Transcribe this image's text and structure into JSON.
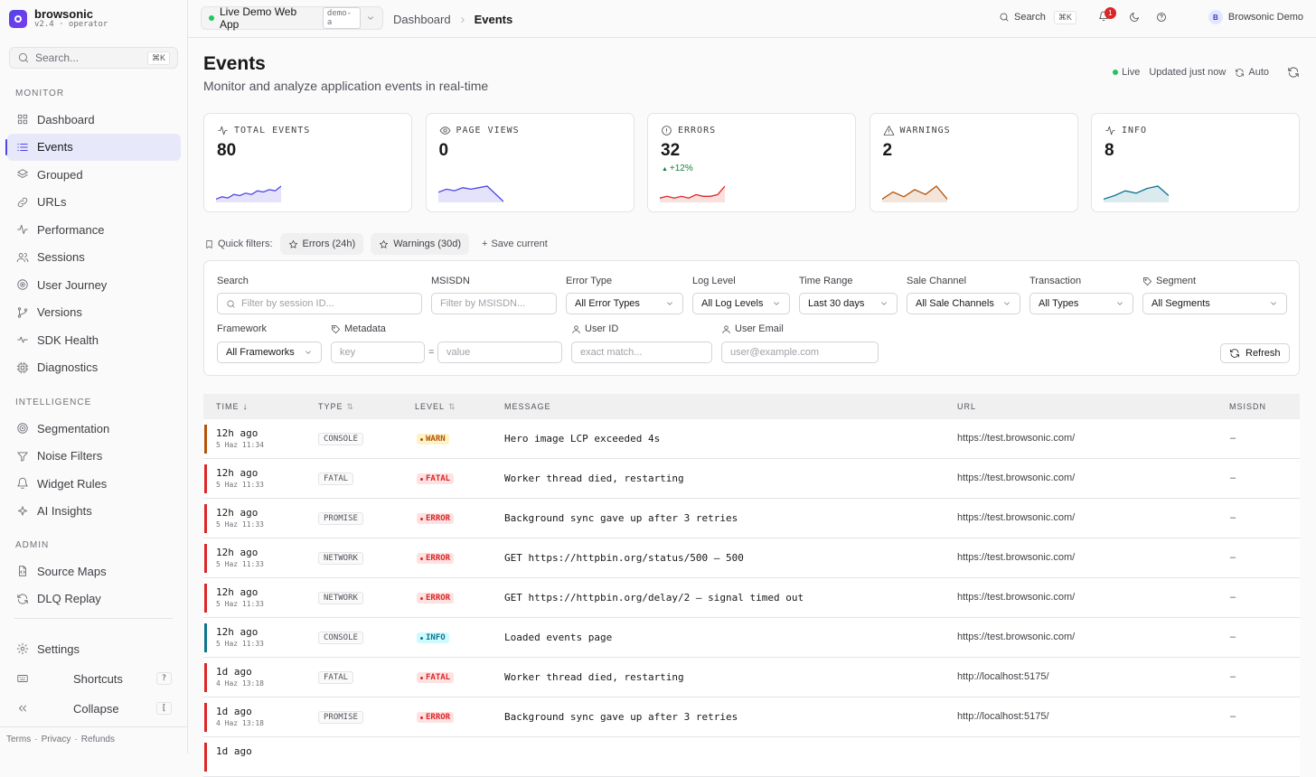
{
  "brand": {
    "name": "browsonic",
    "version": "v2.4 · operator"
  },
  "sidebar": {
    "search_placeholder": "Search...",
    "search_kbd": "⌘K",
    "sections": {
      "monitor": "MONITOR",
      "intelligence": "INTELLIGENCE",
      "admin": "ADMIN"
    },
    "monitor": [
      {
        "label": "Dashboard",
        "icon": "grid-icon"
      },
      {
        "label": "Events",
        "icon": "list-icon",
        "active": true
      },
      {
        "label": "Grouped",
        "icon": "layers-icon"
      },
      {
        "label": "URLs",
        "icon": "link-icon"
      },
      {
        "label": "Performance",
        "icon": "activity-icon"
      },
      {
        "label": "Sessions",
        "icon": "users-icon"
      },
      {
        "label": "User Journey",
        "icon": "route-icon"
      },
      {
        "label": "Versions",
        "icon": "git-branch-icon"
      },
      {
        "label": "SDK Health",
        "icon": "heartbeat-icon"
      },
      {
        "label": "Diagnostics",
        "icon": "cpu-icon"
      }
    ],
    "intelligence": [
      {
        "label": "Segmentation",
        "icon": "target-icon"
      },
      {
        "label": "Noise Filters",
        "icon": "filter-icon"
      },
      {
        "label": "Widget Rules",
        "icon": "bell-icon"
      },
      {
        "label": "AI Insights",
        "icon": "sparkles-icon"
      }
    ],
    "admin": [
      {
        "label": "Source Maps",
        "icon": "file-code-icon"
      },
      {
        "label": "DLQ Replay",
        "icon": "replay-icon"
      }
    ],
    "footer": {
      "settings": "Settings",
      "shortcuts": "Shortcuts",
      "shortcuts_kbd": "?",
      "collapse": "Collapse",
      "collapse_kbd": "["
    },
    "legal": {
      "terms": "Terms",
      "privacy": "Privacy",
      "refunds": "Refunds",
      "sep": "·"
    }
  },
  "topbar": {
    "app": "Live Demo Web App",
    "app_tag": "demo-a",
    "crumb_root": "Dashboard",
    "crumb_current": "Events",
    "search": "Search",
    "search_kbd": "⌘K",
    "notifications": "1",
    "user_initial": "B",
    "user": "Browsonic Demo"
  },
  "page": {
    "title": "Events",
    "subtitle": "Monitor and analyze application events in real-time",
    "live": "Live",
    "updated": "Updated just now",
    "auto": "Auto"
  },
  "colors": {
    "accent": "#4f46e5",
    "warn": "#b45309",
    "fatal": "#dc2626",
    "error": "#dc2626",
    "info": "#0e7490",
    "live": "#22c55e"
  },
  "stats": [
    {
      "label": "TOTAL EVENTS",
      "value": "80",
      "icon": "activity-icon",
      "color": "#4f46e5",
      "spark": [
        2,
        4,
        3,
        6,
        5,
        7,
        6,
        9,
        8,
        10,
        9,
        13
      ]
    },
    {
      "label": "PAGE VIEWS",
      "value": "0",
      "icon": "eye-icon",
      "color": "#4f46e5",
      "spark": [
        6,
        8,
        7,
        9,
        8,
        9,
        10,
        5,
        0
      ]
    },
    {
      "label": "ERRORS",
      "value": "32",
      "icon": "alert-circle-icon",
      "color": "#dc2626",
      "delta": "+12%",
      "spark": [
        2,
        3,
        2,
        3,
        2,
        4,
        3,
        3,
        4,
        9
      ]
    },
    {
      "label": "WARNINGS",
      "value": "2",
      "icon": "alert-triangle-icon",
      "color": "#b45309",
      "spark": [
        2,
        8,
        4,
        10,
        6,
        13,
        2
      ]
    },
    {
      "label": "INFO",
      "value": "8",
      "icon": "activity-icon",
      "color": "#0e7490",
      "spark": [
        2,
        5,
        9,
        7,
        11,
        13,
        5
      ]
    }
  ],
  "quick_filters": {
    "label": "Quick filters:",
    "items": [
      "Errors (24h)",
      "Warnings (30d)"
    ],
    "save": "Save current"
  },
  "filters": {
    "search_label": "Search",
    "search_placeholder": "Filter by session ID...",
    "msisdn_label": "MSISDN",
    "msisdn_placeholder": "Filter by MSISDN...",
    "error_type_label": "Error Type",
    "error_type_value": "All Error Types",
    "log_level_label": "Log Level",
    "log_level_value": "All Log Levels",
    "time_range_label": "Time Range",
    "time_range_value": "Last 30 days",
    "sale_channel_label": "Sale Channel",
    "sale_channel_value": "All Sale Channels",
    "transaction_label": "Transaction",
    "transaction_value": "All Types",
    "segment_label": "Segment",
    "segment_value": "All Segments",
    "framework_label": "Framework",
    "framework_value": "All Frameworks",
    "metadata_label": "Metadata",
    "key_placeholder": "key",
    "eq": "=",
    "value_placeholder": "value",
    "user_id_label": "User ID",
    "user_id_placeholder": "exact match...",
    "user_email_label": "User Email",
    "user_email_placeholder": "user@example.com",
    "refresh": "Refresh"
  },
  "table": {
    "headers": {
      "time": "TIME",
      "type": "TYPE",
      "level": "LEVEL",
      "message": "MESSAGE",
      "url": "URL",
      "msisdn": "MSISDN"
    },
    "rows": [
      {
        "rel": "12h ago",
        "abs": "5 Haz 11:34",
        "type": "CONSOLE",
        "level": "WARN",
        "message": "Hero image LCP exceeded 4s",
        "url": "https://test.browsonic.com/",
        "msisdn": "–"
      },
      {
        "rel": "12h ago",
        "abs": "5 Haz 11:33",
        "type": "FATAL",
        "level": "FATAL",
        "message": "Worker thread died, restarting",
        "url": "https://test.browsonic.com/",
        "msisdn": "–"
      },
      {
        "rel": "12h ago",
        "abs": "5 Haz 11:33",
        "type": "PROMISE",
        "level": "ERROR",
        "message": "Background sync gave up after 3 retries",
        "url": "https://test.browsonic.com/",
        "msisdn": "–"
      },
      {
        "rel": "12h ago",
        "abs": "5 Haz 11:33",
        "type": "NETWORK",
        "level": "ERROR",
        "message": "GET https://httpbin.org/status/500 – 500",
        "url": "https://test.browsonic.com/",
        "msisdn": "–"
      },
      {
        "rel": "12h ago",
        "abs": "5 Haz 11:33",
        "type": "NETWORK",
        "level": "ERROR",
        "message": "GET https://httpbin.org/delay/2 – signal timed out",
        "url": "https://test.browsonic.com/",
        "msisdn": "–"
      },
      {
        "rel": "12h ago",
        "abs": "5 Haz 11:33",
        "type": "CONSOLE",
        "level": "INFO",
        "message": "Loaded events page",
        "url": "https://test.browsonic.com/",
        "msisdn": "–"
      },
      {
        "rel": "1d ago",
        "abs": "4 Haz 13:18",
        "type": "FATAL",
        "level": "FATAL",
        "message": "Worker thread died, restarting",
        "url": "http://localhost:5175/",
        "msisdn": "–"
      },
      {
        "rel": "1d ago",
        "abs": "4 Haz 13:18",
        "type": "PROMISE",
        "level": "ERROR",
        "message": "Background sync gave up after 3 retries",
        "url": "http://localhost:5175/",
        "msisdn": "–"
      },
      {
        "rel": "1d ago",
        "abs": "",
        "type": "",
        "level": "",
        "message": "",
        "url": "",
        "msisdn": ""
      }
    ]
  }
}
